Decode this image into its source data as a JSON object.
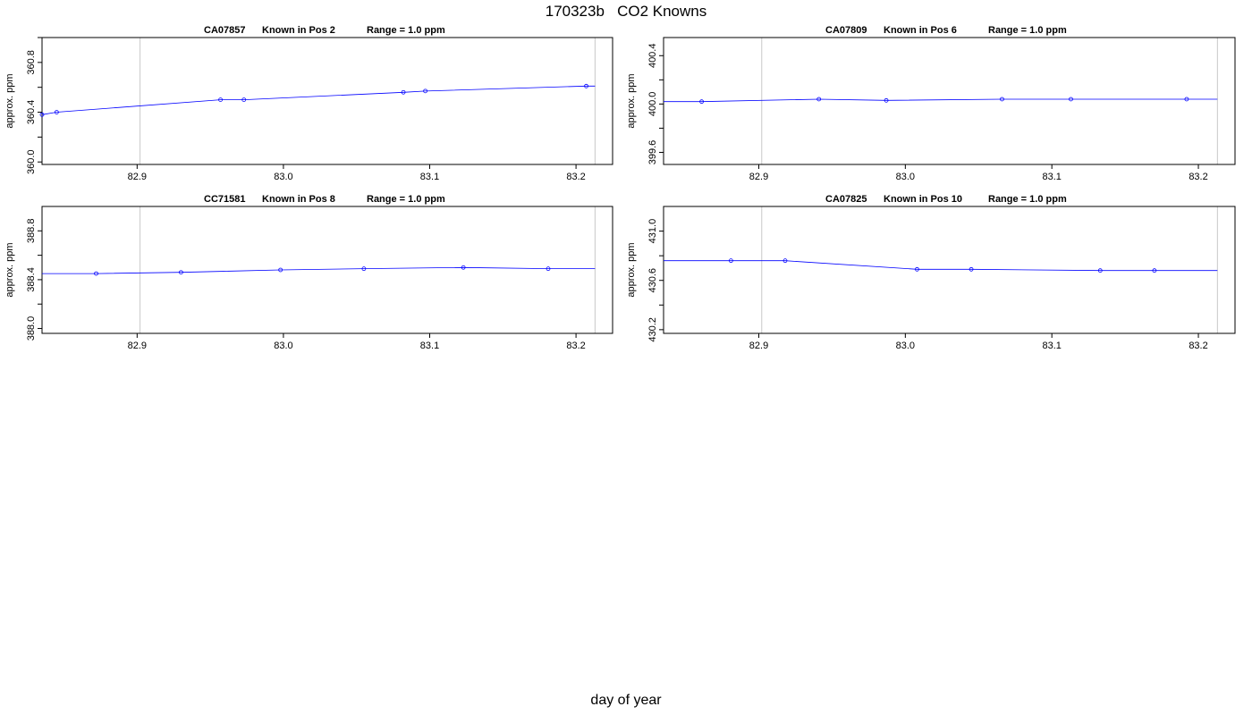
{
  "page": {
    "title": "170323b   CO2 Knowns",
    "x_caption": "day of year"
  },
  "chart_data": [
    {
      "type": "line",
      "title_parts": [
        "CA07857",
        "Known in Pos 2",
        "Range = 1.0 ppm"
      ],
      "ylabel": "approx. ppm",
      "xlim": [
        82.835,
        83.225
      ],
      "ylim": [
        359.98,
        361.0
      ],
      "xticks": [
        82.9,
        83.0,
        83.1,
        83.2
      ],
      "xtick_labels": [
        "82.9",
        "83.0",
        "83.1",
        "83.2"
      ],
      "yticks": [
        360.0,
        360.2,
        360.4,
        360.6,
        360.8,
        361.0
      ],
      "yticks_labeled": [
        "360.0",
        "360.4",
        "360.8"
      ],
      "vlines": [
        82.902,
        83.213
      ],
      "series": [
        {
          "x": [
            82.835,
            82.845,
            82.957,
            82.973,
            83.082,
            83.097,
            83.207,
            83.213
          ],
          "y": [
            360.38,
            360.4,
            360.5,
            360.5,
            360.56,
            360.57,
            360.61,
            360.61
          ],
          "points": [
            0,
            1,
            2,
            3,
            4,
            5,
            6
          ]
        }
      ],
      "colors": {
        "line": "#0000ff",
        "points": "#0000ff",
        "vline": "#c8c8c8"
      }
    },
    {
      "type": "line",
      "title_parts": [
        "CA07809",
        "Known in Pos 6",
        "Range = 1.0 ppm"
      ],
      "ylabel": "approx. ppm",
      "xlim": [
        82.835,
        83.225
      ],
      "ylim": [
        399.5,
        400.55
      ],
      "xticks": [
        82.9,
        83.0,
        83.1,
        83.2
      ],
      "xtick_labels": [
        "82.9",
        "83.0",
        "83.1",
        "83.2"
      ],
      "yticks": [
        399.6,
        399.8,
        400.0,
        400.2,
        400.4
      ],
      "yticks_labeled": [
        "399.6",
        "400.0",
        "400.4"
      ],
      "vlines": [
        82.902,
        83.213
      ],
      "series": [
        {
          "x": [
            82.835,
            82.861,
            82.941,
            82.987,
            83.066,
            83.113,
            83.192,
            83.213
          ],
          "y": [
            400.02,
            400.02,
            400.04,
            400.03,
            400.04,
            400.04,
            400.04,
            400.04
          ],
          "points": [
            1,
            2,
            3,
            4,
            5,
            6
          ]
        }
      ],
      "colors": {
        "line": "#0000ff",
        "points": "#0000ff",
        "vline": "#c8c8c8"
      }
    },
    {
      "type": "line",
      "title_parts": [
        "CC71581",
        "Known in Pos 8",
        "Range = 1.0 ppm"
      ],
      "ylabel": "approx. ppm",
      "xlim": [
        82.835,
        83.225
      ],
      "ylim": [
        387.96,
        389.0
      ],
      "xticks": [
        82.9,
        83.0,
        83.1,
        83.2
      ],
      "xtick_labels": [
        "82.9",
        "83.0",
        "83.1",
        "83.2"
      ],
      "yticks": [
        388.0,
        388.2,
        388.4,
        388.6,
        388.8
      ],
      "yticks_labeled": [
        "388.0",
        "388.4",
        "388.8"
      ],
      "vlines": [
        82.902,
        83.213
      ],
      "series": [
        {
          "x": [
            82.835,
            82.872,
            82.93,
            82.998,
            83.055,
            83.123,
            83.181,
            83.213
          ],
          "y": [
            388.45,
            388.45,
            388.46,
            388.48,
            388.49,
            388.5,
            388.49,
            388.49
          ],
          "points": [
            1,
            2,
            3,
            4,
            5,
            6
          ]
        }
      ],
      "colors": {
        "line": "#0000ff",
        "points": "#0000ff",
        "vline": "#c8c8c8"
      }
    },
    {
      "type": "line",
      "title_parts": [
        "CA07825",
        "Known in Pos 10",
        "Range = 1.0 ppm"
      ],
      "ylabel": "approx. ppm",
      "xlim": [
        82.835,
        83.225
      ],
      "ylim": [
        430.17,
        431.2
      ],
      "xticks": [
        82.9,
        83.0,
        83.1,
        83.2
      ],
      "xtick_labels": [
        "82.9",
        "83.0",
        "83.1",
        "83.2"
      ],
      "yticks": [
        430.2,
        430.4,
        430.6,
        430.8,
        431.0
      ],
      "yticks_labeled": [
        "430.2",
        "430.6",
        "431.0"
      ],
      "vlines": [
        82.902,
        83.213
      ],
      "series": [
        {
          "x": [
            82.835,
            82.881,
            82.918,
            83.008,
            83.045,
            83.133,
            83.17,
            83.213
          ],
          "y": [
            430.76,
            430.76,
            430.76,
            430.69,
            430.69,
            430.68,
            430.68,
            430.68
          ],
          "points": [
            1,
            2,
            3,
            4,
            5,
            6
          ]
        }
      ],
      "colors": {
        "line": "#0000ff",
        "points": "#0000ff",
        "vline": "#c8c8c8"
      }
    }
  ]
}
